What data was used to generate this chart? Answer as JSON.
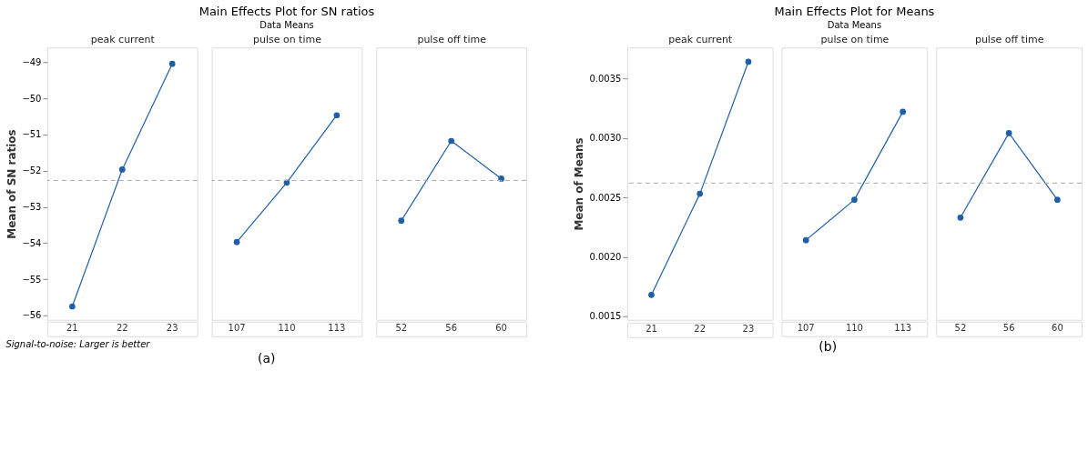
{
  "chart_data": [
    {
      "type": "line",
      "xlabel": "peak current",
      "ylabel": "Mean of SN ratios",
      "categories": [
        "21",
        "22",
        "23"
      ],
      "series": [
        {
          "color": "#1f5fa8",
          "values": [
            -55.75,
            -51.97,
            -49.05
          ]
        }
      ],
      "ylim": [
        -56.12,
        -48.6
      ],
      "yticks": [
        -56,
        -55,
        -54,
        -53,
        -52,
        -51,
        -50,
        -49
      ],
      "marker": "circle",
      "line_style": "solid",
      "grid": false,
      "ref_lines": [
        {
          "axis": "y",
          "value": -52.27,
          "color": "#aaaaaa",
          "line_style": "dashed"
        }
      ],
      "annotations": [
        "Signal-to-noise: Larger is better",
        "(a)"
      ]
    },
    {
      "type": "line",
      "title": "Main Effects Plot for SN ratios",
      "subtitle": "Data Means",
      "xlabel": "pulse on time",
      "categories": [
        "107",
        "110",
        "113"
      ],
      "series": [
        {
          "color": "#1f5fa8",
          "values": [
            -53.97,
            -52.33,
            -50.47
          ]
        }
      ],
      "ylim": [
        -56.12,
        -48.6
      ],
      "tick_labels": "x",
      "marker": "circle",
      "line_style": "solid",
      "grid": false,
      "ref_lines": [
        {
          "axis": "y",
          "value": -52.27,
          "color": "#aaaaaa",
          "line_style": "dashed"
        }
      ]
    },
    {
      "type": "line",
      "xlabel": "pulse off time",
      "categories": [
        "52",
        "56",
        "60"
      ],
      "series": [
        {
          "color": "#1f5fa8",
          "values": [
            -53.38,
            -51.18,
            -52.22
          ]
        }
      ],
      "ylim": [
        -56.12,
        -48.6
      ],
      "tick_labels": "x",
      "marker": "circle",
      "line_style": "solid",
      "grid": false,
      "ref_lines": [
        {
          "axis": "y",
          "value": -52.27,
          "color": "#aaaaaa",
          "line_style": "dashed"
        }
      ]
    },
    {
      "type": "line",
      "xlabel": "peak current",
      "ylabel": "Mean of Means",
      "categories": [
        "21",
        "22",
        "23"
      ],
      "series": [
        {
          "color": "#1f5fa8",
          "values": [
            0.00168,
            0.00253,
            0.00364
          ]
        }
      ],
      "ylim": [
        0.00147,
        0.00376
      ],
      "yticks": [
        {
          "value": 0.0015,
          "label": "0.0015"
        },
        {
          "value": 0.002,
          "label": "0.0020"
        },
        {
          "value": 0.0025,
          "label": "0.0025"
        },
        {
          "value": 0.003,
          "label": "0.0030"
        },
        {
          "value": 0.0035,
          "label": "0.0035"
        }
      ],
      "marker": "circle",
      "line_style": "solid",
      "grid": false,
      "ref_lines": [
        {
          "axis": "y",
          "value": 0.00262,
          "color": "#aaaaaa",
          "line_style": "dashed"
        }
      ],
      "annotations": [
        "(b)"
      ]
    },
    {
      "type": "line",
      "title": "Main Effects Plot for Means",
      "subtitle": "Data Means",
      "xlabel": "pulse on time",
      "categories": [
        "107",
        "110",
        "113"
      ],
      "series": [
        {
          "color": "#1f5fa8",
          "values": [
            0.00214,
            0.00248,
            0.00322
          ]
        }
      ],
      "ylim": [
        0.00147,
        0.00376
      ],
      "tick_labels": "x",
      "marker": "circle",
      "line_style": "solid",
      "grid": false,
      "ref_lines": [
        {
          "axis": "y",
          "value": 0.00262,
          "color": "#aaaaaa",
          "line_style": "dashed"
        }
      ]
    },
    {
      "type": "line",
      "xlabel": "pulse off time",
      "categories": [
        "52",
        "56",
        "60"
      ],
      "series": [
        {
          "color": "#1f5fa8",
          "values": [
            0.00233,
            0.00304,
            0.00248
          ]
        }
      ],
      "ylim": [
        0.00147,
        0.00376
      ],
      "tick_labels": "x",
      "marker": "circle",
      "line_style": "solid",
      "grid": false,
      "ref_lines": [
        {
          "axis": "y",
          "value": 0.00262,
          "color": "#aaaaaa",
          "line_style": "dashed"
        }
      ]
    }
  ]
}
